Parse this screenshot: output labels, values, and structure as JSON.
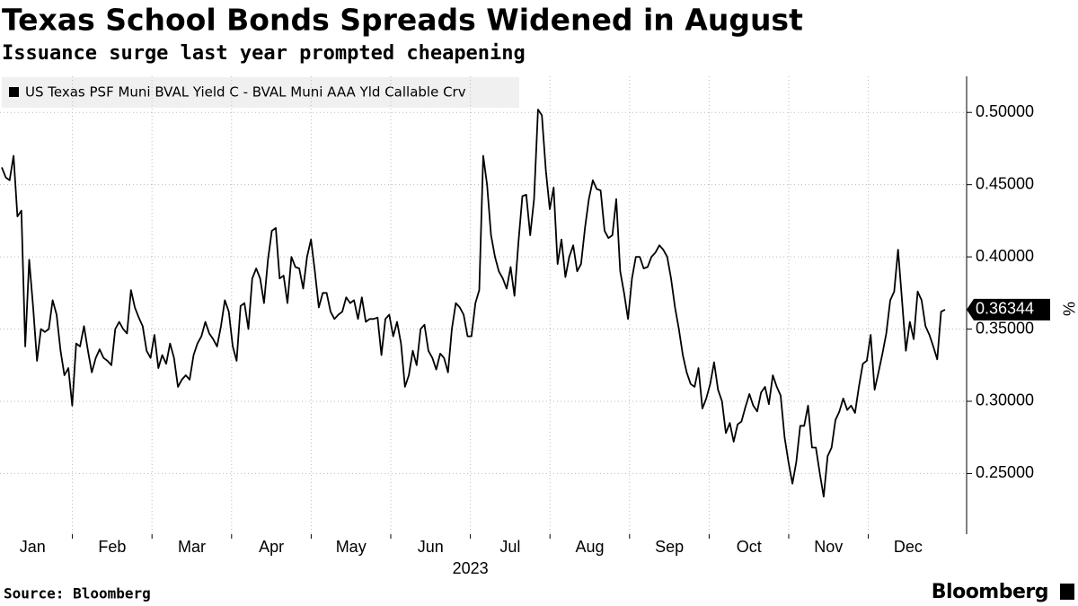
{
  "chart_data": {
    "type": "line",
    "title": "Texas School Bonds Spreads Widened in August",
    "subtitle": "Issuance surge last year prompted cheapening",
    "source": "Source: Bloomberg",
    "brand": "Bloomberg",
    "y_axis_label": "%",
    "months": [
      "Jan",
      "Feb",
      "Mar",
      "Apr",
      "May",
      "Jun",
      "Jul",
      "Aug",
      "Sep",
      "Oct",
      "Nov",
      "Dec"
    ],
    "year": "2023",
    "ylim": [
      0.208,
      0.525
    ],
    "yticks": [
      {
        "value": 0.25,
        "label": "0.25000"
      },
      {
        "value": 0.3,
        "label": "0.30000"
      },
      {
        "value": 0.35,
        "label": "0.35000"
      },
      {
        "value": 0.4,
        "label": "0.40000"
      },
      {
        "value": 0.45,
        "label": "0.45000"
      },
      {
        "value": 0.5,
        "label": "0.50000"
      }
    ],
    "grid": true,
    "series": [
      {
        "name": "US Texas PSF Muni BVAL Yield C - BVAL Muni AAA Yld Callable Crv",
        "color": "#000000",
        "values": [
          0.462,
          0.455,
          0.453,
          0.47,
          0.428,
          0.432,
          0.338,
          0.398,
          0.365,
          0.328,
          0.35,
          0.348,
          0.35,
          0.37,
          0.36,
          0.335,
          0.318,
          0.323,
          0.297,
          0.34,
          0.338,
          0.352,
          0.335,
          0.32,
          0.33,
          0.336,
          0.33,
          0.328,
          0.325,
          0.35,
          0.355,
          0.35,
          0.347,
          0.377,
          0.365,
          0.358,
          0.352,
          0.335,
          0.33,
          0.346,
          0.323,
          0.332,
          0.326,
          0.34,
          0.33,
          0.31,
          0.315,
          0.318,
          0.315,
          0.332,
          0.34,
          0.345,
          0.355,
          0.347,
          0.343,
          0.338,
          0.352,
          0.37,
          0.362,
          0.338,
          0.328,
          0.366,
          0.368,
          0.35,
          0.385,
          0.392,
          0.385,
          0.368,
          0.398,
          0.418,
          0.42,
          0.385,
          0.387,
          0.368,
          0.4,
          0.393,
          0.392,
          0.378,
          0.4,
          0.412,
          0.39,
          0.365,
          0.375,
          0.375,
          0.362,
          0.357,
          0.36,
          0.362,
          0.372,
          0.368,
          0.37,
          0.357,
          0.372,
          0.355,
          0.357,
          0.357,
          0.358,
          0.332,
          0.357,
          0.36,
          0.345,
          0.355,
          0.34,
          0.31,
          0.318,
          0.335,
          0.325,
          0.35,
          0.353,
          0.335,
          0.33,
          0.322,
          0.333,
          0.33,
          0.32,
          0.35,
          0.368,
          0.365,
          0.36,
          0.345,
          0.345,
          0.368,
          0.377,
          0.47,
          0.45,
          0.415,
          0.4,
          0.39,
          0.385,
          0.378,
          0.393,
          0.373,
          0.41,
          0.442,
          0.443,
          0.415,
          0.44,
          0.502,
          0.498,
          0.46,
          0.433,
          0.448,
          0.395,
          0.412,
          0.386,
          0.4,
          0.408,
          0.39,
          0.395,
          0.42,
          0.44,
          0.453,
          0.447,
          0.446,
          0.418,
          0.413,
          0.415,
          0.44,
          0.39,
          0.375,
          0.357,
          0.385,
          0.4,
          0.4,
          0.392,
          0.393,
          0.4,
          0.403,
          0.408,
          0.405,
          0.4,
          0.385,
          0.365,
          0.35,
          0.332,
          0.32,
          0.312,
          0.31,
          0.323,
          0.295,
          0.302,
          0.312,
          0.327,
          0.308,
          0.3,
          0.278,
          0.285,
          0.272,
          0.284,
          0.286,
          0.296,
          0.305,
          0.297,
          0.293,
          0.306,
          0.31,
          0.298,
          0.318,
          0.31,
          0.304,
          0.275,
          0.258,
          0.243,
          0.258,
          0.283,
          0.283,
          0.297,
          0.268,
          0.268,
          0.25,
          0.234,
          0.262,
          0.268,
          0.287,
          0.293,
          0.302,
          0.294,
          0.297,
          0.292,
          0.31,
          0.326,
          0.328,
          0.346,
          0.308,
          0.32,
          0.333,
          0.347,
          0.37,
          0.376,
          0.405,
          0.37,
          0.335,
          0.355,
          0.343,
          0.376,
          0.37,
          0.352,
          0.346,
          0.338,
          0.329,
          0.362,
          0.36344
        ]
      }
    ]
  }
}
